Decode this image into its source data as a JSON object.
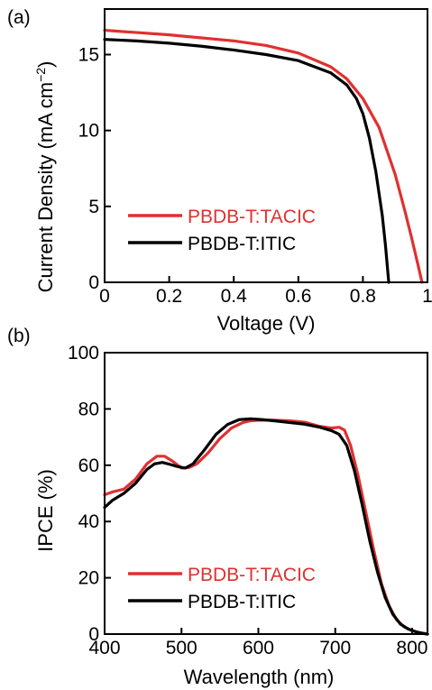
{
  "chart_data": [
    {
      "panel_label": "(a)",
      "type": "line",
      "xlabel": "Voltage (V)",
      "ylabel": "Current Density (mA cm",
      "ylabel_sup": "−2",
      "ylabel_close": ")",
      "xlim": [
        0,
        1
      ],
      "ylim": [
        0,
        18
      ],
      "xticks": [
        0,
        0.2,
        0.4,
        0.6,
        0.8,
        1
      ],
      "xtick_labels": [
        "0",
        "0.2",
        "0.4",
        "0.6",
        "0.8",
        "1"
      ],
      "yticks": [
        0,
        5,
        10,
        15
      ],
      "ytick_labels": [
        "0",
        "5",
        "10",
        "15"
      ],
      "grid": false,
      "legend_position": "bottom-left",
      "series": [
        {
          "name": "PBDB-T:TACIC",
          "color": "#e03030",
          "x": [
            0,
            0.1,
            0.2,
            0.3,
            0.4,
            0.5,
            0.6,
            0.7,
            0.75,
            0.8,
            0.85,
            0.9,
            0.93,
            0.95,
            0.97,
            0.983
          ],
          "y": [
            16.6,
            16.45,
            16.3,
            16.1,
            15.9,
            15.6,
            15.1,
            14.2,
            13.4,
            12.1,
            10.2,
            7.1,
            4.7,
            3.0,
            1.2,
            0
          ]
        },
        {
          "name": "PBDB-T:ITIC",
          "color": "#000000",
          "x": [
            0,
            0.1,
            0.2,
            0.3,
            0.4,
            0.5,
            0.6,
            0.7,
            0.75,
            0.78,
            0.8,
            0.82,
            0.84,
            0.86,
            0.87,
            0.88
          ],
          "y": [
            16.0,
            15.9,
            15.75,
            15.55,
            15.3,
            15.0,
            14.6,
            13.8,
            13.0,
            12.1,
            11.1,
            9.5,
            7.3,
            4.4,
            2.4,
            0
          ]
        }
      ]
    },
    {
      "panel_label": "(b)",
      "type": "line",
      "xlabel": "Wavelength (nm)",
      "ylabel": "IPCE (%)",
      "xlim": [
        400,
        820
      ],
      "ylim": [
        0,
        100
      ],
      "xticks": [
        400,
        500,
        600,
        700,
        800
      ],
      "xtick_labels": [
        "400",
        "500",
        "600",
        "700",
        "800"
      ],
      "yticks": [
        0,
        20,
        40,
        60,
        80,
        100
      ],
      "ytick_labels": [
        "0",
        "20",
        "40",
        "60",
        "80",
        "100"
      ],
      "grid": false,
      "legend_position": "bottom-left",
      "series": [
        {
          "name": "PBDB-T:TACIC",
          "color": "#e03030",
          "x": [
            400,
            410,
            425,
            440,
            455,
            468,
            478,
            488,
            500,
            510,
            520,
            535,
            550,
            565,
            580,
            590,
            600,
            620,
            640,
            660,
            680,
            695,
            705,
            712,
            720,
            730,
            740,
            750,
            760,
            770,
            780,
            790,
            800,
            810,
            820
          ],
          "y": [
            49.5,
            50.5,
            51.5,
            55,
            60.5,
            63.2,
            63.2,
            61.5,
            59,
            59.2,
            60.5,
            64.5,
            69.5,
            73.2,
            75.2,
            75.8,
            76,
            76,
            75.8,
            75.3,
            73.8,
            73.2,
            73.5,
            72.5,
            67,
            56,
            43,
            30,
            18,
            10,
            5,
            2.5,
            1.2,
            0.5,
            0
          ]
        },
        {
          "name": "PBDB-T:ITIC",
          "color": "#000000",
          "x": [
            400,
            410,
            425,
            440,
            455,
            465,
            475,
            485,
            495,
            505,
            515,
            530,
            545,
            560,
            575,
            590,
            605,
            620,
            640,
            660,
            680,
            695,
            705,
            715,
            725,
            735,
            745,
            755,
            765,
            775,
            785,
            795,
            805,
            815,
            820
          ],
          "y": [
            45,
            47.5,
            50,
            53.5,
            58.5,
            60.5,
            61,
            60.3,
            59.5,
            59,
            60.5,
            65.5,
            71,
            74.5,
            76.2,
            76.5,
            76.2,
            75.8,
            75.2,
            74.6,
            73.5,
            72.3,
            71,
            67,
            58,
            46,
            33,
            22,
            13,
            7,
            3.5,
            1.8,
            0.8,
            0.2,
            0
          ]
        }
      ]
    }
  ]
}
